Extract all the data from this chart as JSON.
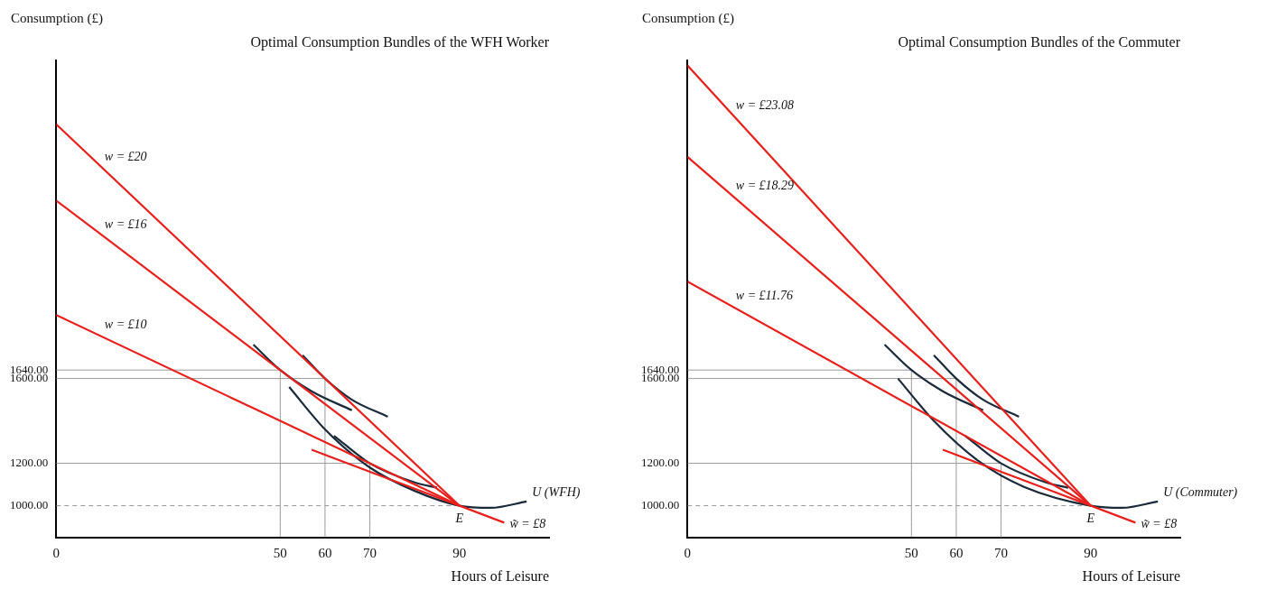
{
  "chart_data": [
    {
      "type": "line",
      "title": "Optimal Consumption Bundles of the WFH Worker",
      "xlabel": "Hours of Leisure",
      "ylabel": "Consumption (£)",
      "xlim": [
        0,
        110
      ],
      "xticks": [
        0,
        50,
        60,
        70,
        90
      ],
      "ylim": [
        850,
        3100
      ],
      "yticks": [
        {
          "value": 1000,
          "label": "1000.00"
        },
        {
          "value": 1200,
          "label": "1200.00"
        },
        {
          "value": 1600,
          "label": "1600.00"
        },
        {
          "value": 1640,
          "label": "1640.00"
        }
      ],
      "grid": false,
      "legend": false,
      "marker": "none",
      "series": [
        {
          "name": "w = £20",
          "color": "#e8201c",
          "x": [
            0,
            90
          ],
          "values": [
            2800,
            1000
          ]
        },
        {
          "name": "w = £16",
          "color": "#e8201c",
          "x": [
            0,
            90
          ],
          "values": [
            2440,
            1000
          ]
        },
        {
          "name": "w = £10",
          "color": "#e8201c",
          "x": [
            0,
            90
          ],
          "values": [
            1900,
            1000
          ]
        },
        {
          "name": "w̃ = £8",
          "color": "#e8201c",
          "x": [
            57,
            100
          ],
          "values": [
            1264,
            920
          ]
        },
        {
          "color": "#1a2a3a",
          "x": [
            44,
            50,
            57,
            66
          ],
          "values": [
            1760,
            1640,
            1540,
            1450
          ]
        },
        {
          "color": "#1a2a3a",
          "x": [
            55,
            60,
            66,
            74
          ],
          "values": [
            1710,
            1600,
            1500,
            1420
          ]
        },
        {
          "color": "#1a2a3a",
          "x": [
            62,
            70,
            80,
            85
          ],
          "values": [
            1330,
            1200,
            1110,
            1085
          ]
        },
        {
          "name": "U (WFH)",
          "color": "#1a2a3a",
          "x": [
            52,
            60,
            70,
            80,
            90,
            97,
            105
          ],
          "values": [
            1560,
            1360,
            1180,
            1070,
            1000,
            990,
            1020
          ]
        },
        {
          "color": "#999999",
          "x": [
            0,
            50,
            50
          ],
          "values": [
            1640,
            1640,
            850
          ]
        },
        {
          "color": "#999999",
          "x": [
            0,
            60,
            60
          ],
          "values": [
            1600,
            1600,
            850
          ]
        },
        {
          "color": "#999999",
          "x": [
            0,
            70,
            70
          ],
          "values": [
            1200,
            1200,
            850
          ]
        },
        {
          "color": "#999999",
          "x": [
            0,
            90
          ],
          "values": [
            1000,
            1000
          ],
          "line_style": "dashed"
        }
      ],
      "annotations": [
        {
          "text": "E",
          "x": 90,
          "y": 1000
        }
      ]
    },
    {
      "type": "line",
      "title": "Optimal Consumption Bundles of the Commuter",
      "xlabel": "Hours of Leisure",
      "ylabel": "Consumption (£)",
      "xlim": [
        0,
        110
      ],
      "xticks": [
        0,
        50,
        60,
        70,
        90
      ],
      "ylim": [
        850,
        3100
      ],
      "yticks": [
        {
          "value": 1000,
          "label": "1000.00"
        },
        {
          "value": 1200,
          "label": "1200.00"
        },
        {
          "value": 1600,
          "label": "1600.00"
        },
        {
          "value": 1640,
          "label": "1640.00"
        }
      ],
      "grid": false,
      "legend": false,
      "marker": "none",
      "series": [
        {
          "name": "w = £23.08",
          "color": "#e8201c",
          "x": [
            0,
            90
          ],
          "values": [
            3077,
            1000
          ]
        },
        {
          "name": "w = £18.29",
          "color": "#e8201c",
          "x": [
            0,
            90
          ],
          "values": [
            2646,
            1000
          ]
        },
        {
          "name": "w = £11.76",
          "color": "#e8201c",
          "x": [
            0,
            90
          ],
          "values": [
            2058,
            1000
          ]
        },
        {
          "name": "w̃ = £8",
          "color": "#e8201c",
          "x": [
            57,
            100
          ],
          "values": [
            1264,
            920
          ]
        },
        {
          "color": "#1a2a3a",
          "x": [
            44,
            50,
            57,
            66
          ],
          "values": [
            1760,
            1640,
            1540,
            1450
          ]
        },
        {
          "color": "#1a2a3a",
          "x": [
            55,
            60,
            66,
            74
          ],
          "values": [
            1710,
            1600,
            1500,
            1420
          ]
        },
        {
          "color": "#1a2a3a",
          "x": [
            62,
            70,
            80,
            85
          ],
          "values": [
            1330,
            1200,
            1110,
            1085
          ]
        },
        {
          "name": "U (Commuter)",
          "color": "#1a2a3a",
          "x": [
            47,
            55,
            65,
            75,
            90,
            97,
            105
          ],
          "values": [
            1600,
            1400,
            1210,
            1090,
            1000,
            990,
            1020
          ]
        },
        {
          "color": "#999999",
          "x": [
            0,
            50,
            50
          ],
          "values": [
            1640,
            1640,
            850
          ]
        },
        {
          "color": "#999999",
          "x": [
            0,
            60,
            60
          ],
          "values": [
            1600,
            1600,
            850
          ]
        },
        {
          "color": "#999999",
          "x": [
            0,
            70,
            70
          ],
          "values": [
            1200,
            1200,
            850
          ]
        },
        {
          "color": "#999999",
          "x": [
            0,
            90
          ],
          "values": [
            1000,
            1000
          ],
          "line_style": "dashed"
        }
      ],
      "annotations": [
        {
          "text": "E",
          "x": 90,
          "y": 1000
        }
      ]
    }
  ]
}
